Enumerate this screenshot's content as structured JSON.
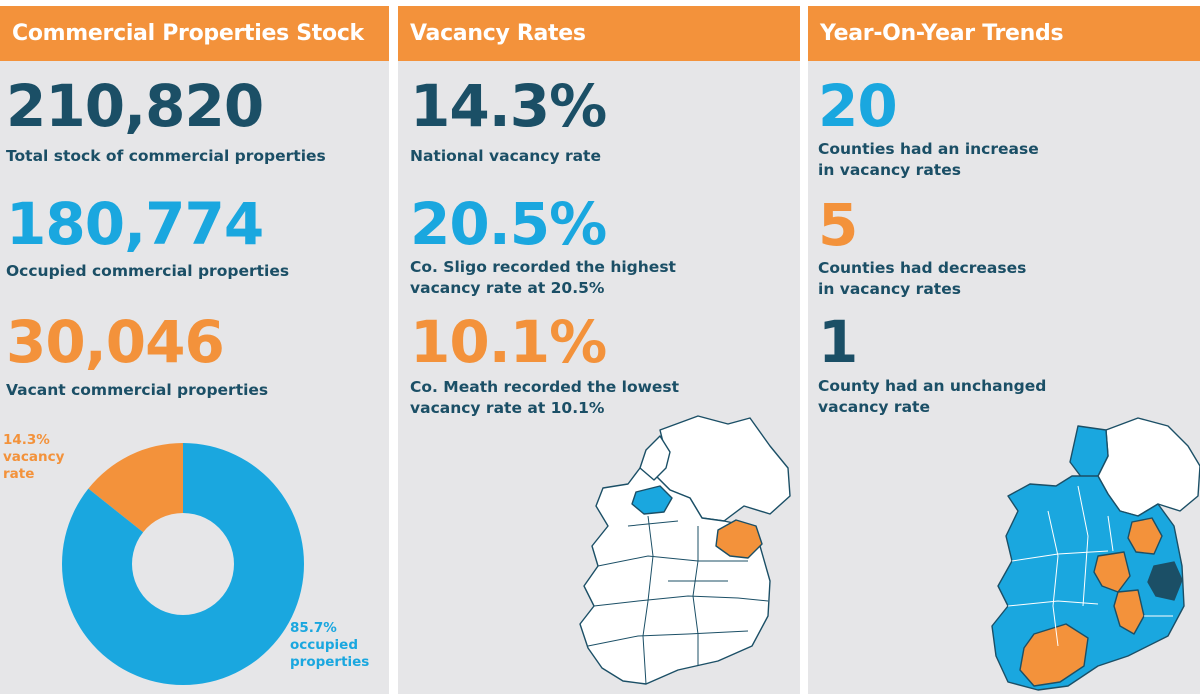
{
  "colors": {
    "navy": "#1b4f66",
    "blue": "#1aa7df",
    "orange": "#f3923b",
    "panel": "#e6e6e8"
  },
  "stock": {
    "title": "Commercial Properties Stock",
    "total_value": "210,820",
    "total_caption": "Total stock of commercial properties",
    "occupied_value": "180,774",
    "occupied_caption": "Occupied commercial properties",
    "vacant_value": "30,046",
    "vacant_caption": "Vacant commercial properties"
  },
  "vacancy": {
    "title": "Vacancy Rates",
    "national_value": "14.3%",
    "national_caption": "National vacancy rate",
    "highest_value": "20.5%",
    "highest_caption_1": "Co. Sligo recorded the highest",
    "highest_caption_2": "vacancy rate at 20.5%",
    "lowest_value": "10.1%",
    "lowest_caption_1": "Co. Meath recorded the lowest",
    "lowest_caption_2": "vacancy rate at 10.1%"
  },
  "trends": {
    "title": "Year-On-Year Trends",
    "increase_value": "20",
    "increase_caption_1": "Counties had an increase",
    "increase_caption_2": "in vacancy rates",
    "decrease_value": "5",
    "decrease_caption_1": "Counties had decreases",
    "decrease_caption_2": "in vacancy rates",
    "unchanged_value": "1",
    "unchanged_caption_1": "County had an unchanged",
    "unchanged_caption_2": "vacancy rate"
  },
  "chart_data": {
    "type": "pie",
    "categories": [
      "vacancy rate",
      "occupied properties"
    ],
    "values": [
      14.3,
      85.7
    ],
    "labels": [
      {
        "line1": "14.3%",
        "line2": "vacancy",
        "line3": "rate"
      },
      {
        "line1": "85.7%",
        "line2": "occupied",
        "line3": "properties"
      }
    ],
    "colors": [
      "#f3923b",
      "#1aa7df"
    ],
    "donut": true
  }
}
